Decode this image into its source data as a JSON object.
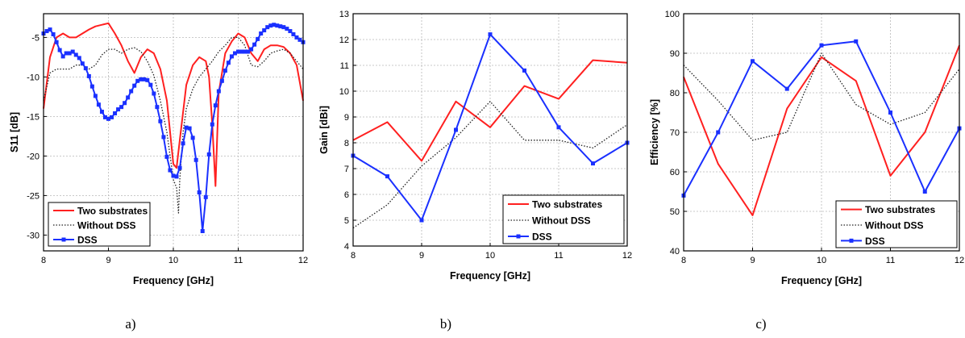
{
  "colors": {
    "two_substrates": "#ff2020",
    "without_dss": "#202020",
    "dss": "#1a30ff"
  },
  "captions": [
    "a)",
    "b)",
    "c)"
  ],
  "chart_data": [
    {
      "type": "line",
      "xlabel": "Frequency [GHz]",
      "ylabel": "S11 [dB]",
      "xlim": [
        8,
        12
      ],
      "ylim": [
        -32,
        -2
      ],
      "xticks": [
        8,
        9,
        10,
        11,
        12
      ],
      "yticks": [
        -30,
        -25,
        -20,
        -15,
        -10,
        -5
      ],
      "grid": true,
      "legend": "bottom-left",
      "series": [
        {
          "name": "Two substrates",
          "style": "solid",
          "marker": false,
          "x": [
            8.0,
            8.1,
            8.2,
            8.3,
            8.4,
            8.5,
            8.6,
            8.7,
            8.8,
            8.9,
            9.0,
            9.1,
            9.2,
            9.3,
            9.4,
            9.5,
            9.6,
            9.7,
            9.8,
            9.9,
            10.0,
            10.05,
            10.1,
            10.2,
            10.3,
            10.4,
            10.5,
            10.55,
            10.6,
            10.65,
            10.7,
            10.8,
            10.9,
            11.0,
            11.1,
            11.2,
            11.3,
            11.4,
            11.5,
            11.6,
            11.7,
            11.8,
            11.9,
            12.0
          ],
          "y": [
            -14,
            -7.5,
            -5,
            -4.5,
            -5,
            -5,
            -4.5,
            -4,
            -3.6,
            -3.4,
            -3.2,
            -4.5,
            -6,
            -8,
            -9.5,
            -7.5,
            -6.5,
            -7,
            -9,
            -13,
            -21,
            -21.5,
            -18,
            -11,
            -8.5,
            -7.5,
            -8,
            -10,
            -16,
            -23.8,
            -12,
            -7,
            -5.5,
            -4.5,
            -5,
            -7,
            -8,
            -6.5,
            -6,
            -6,
            -6.2,
            -7,
            -8.5,
            -13
          ]
        },
        {
          "name": "Without DSS",
          "style": "dotted",
          "marker": false,
          "x": [
            8.0,
            8.1,
            8.2,
            8.3,
            8.4,
            8.5,
            8.6,
            8.7,
            8.8,
            8.9,
            9.0,
            9.1,
            9.2,
            9.3,
            9.4,
            9.5,
            9.6,
            9.7,
            9.8,
            9.9,
            10.0,
            10.05,
            10.08,
            10.1,
            10.15,
            10.2,
            10.3,
            10.4,
            10.5,
            10.6,
            10.7,
            10.8,
            10.9,
            11.0,
            11.1,
            11.2,
            11.3,
            11.4,
            11.5,
            11.6,
            11.7,
            11.8,
            11.9,
            12.0
          ],
          "y": [
            -13,
            -9.5,
            -9,
            -9,
            -9,
            -8.5,
            -8.5,
            -9,
            -8.5,
            -7.2,
            -6.5,
            -6.5,
            -7,
            -6.5,
            -6.3,
            -6.8,
            -8,
            -9.8,
            -13,
            -17,
            -23,
            -24,
            -27.2,
            -23,
            -17,
            -14,
            -11.5,
            -10,
            -9,
            -8,
            -6.8,
            -6,
            -5,
            -5,
            -6,
            -8.5,
            -8.7,
            -8,
            -7,
            -6.7,
            -6.5,
            -7,
            -8,
            -9
          ]
        },
        {
          "name": "DSS",
          "style": "solid",
          "marker": true,
          "x": [
            8.0,
            8.05,
            8.1,
            8.15,
            8.2,
            8.25,
            8.3,
            8.35,
            8.4,
            8.45,
            8.5,
            8.55,
            8.6,
            8.65,
            8.7,
            8.75,
            8.8,
            8.85,
            8.9,
            8.95,
            9.0,
            9.05,
            9.1,
            9.15,
            9.2,
            9.25,
            9.3,
            9.35,
            9.4,
            9.45,
            9.5,
            9.55,
            9.6,
            9.65,
            9.7,
            9.75,
            9.8,
            9.85,
            9.9,
            9.95,
            10.0,
            10.05,
            10.1,
            10.15,
            10.2,
            10.25,
            10.3,
            10.35,
            10.4,
            10.45,
            10.5,
            10.55,
            10.6,
            10.65,
            10.7,
            10.75,
            10.8,
            10.85,
            10.9,
            10.95,
            11.0,
            11.05,
            11.1,
            11.15,
            11.2,
            11.25,
            11.3,
            11.35,
            11.4,
            11.45,
            11.5,
            11.55,
            11.6,
            11.65,
            11.7,
            11.75,
            11.8,
            11.85,
            11.9,
            11.95,
            12.0
          ],
          "y": [
            -4.5,
            -4.2,
            -4,
            -4.6,
            -5.6,
            -6.6,
            -7.4,
            -7,
            -7,
            -6.8,
            -7.2,
            -7.6,
            -8.3,
            -8.9,
            -9.9,
            -11.2,
            -12.4,
            -13.5,
            -14.4,
            -15.1,
            -15.3,
            -15.1,
            -14.6,
            -14.1,
            -13.8,
            -13.3,
            -12.6,
            -11.8,
            -11.1,
            -10.5,
            -10.3,
            -10.3,
            -10.4,
            -11,
            -12.1,
            -13.8,
            -15.6,
            -17.6,
            -20.1,
            -21.8,
            -22.5,
            -22.6,
            -21.5,
            -18.4,
            -16.4,
            -16.5,
            -17.7,
            -20.5,
            -24.6,
            -29.5,
            -25.2,
            -19.8,
            -16,
            -13.6,
            -11.8,
            -10.5,
            -9.2,
            -8.2,
            -7.4,
            -7,
            -6.8,
            -6.8,
            -6.8,
            -6.8,
            -6.5,
            -5.9,
            -5.2,
            -4.5,
            -4.1,
            -3.7,
            -3.5,
            -3.4,
            -3.5,
            -3.6,
            -3.7,
            -3.9,
            -4.2,
            -4.6,
            -5,
            -5.3,
            -5.6
          ]
        }
      ]
    },
    {
      "type": "line",
      "xlabel": "Frequency [GHz]",
      "ylabel": "Gain [dBi]",
      "xlim": [
        8,
        12
      ],
      "ylim": [
        4,
        13
      ],
      "xticks": [
        8,
        9,
        10,
        11,
        12
      ],
      "yticks": [
        4,
        5,
        6,
        7,
        8,
        9,
        10,
        11,
        12,
        13
      ],
      "grid": true,
      "legend": "bottom-right",
      "series": [
        {
          "name": "Two substrates",
          "style": "solid",
          "marker": false,
          "x": [
            8,
            8.5,
            9,
            9.5,
            10,
            10.5,
            11,
            11.5,
            12
          ],
          "y": [
            8.1,
            8.8,
            7.3,
            9.6,
            8.6,
            10.2,
            9.7,
            11.2,
            11.1
          ]
        },
        {
          "name": "Without DSS",
          "style": "dotted",
          "marker": false,
          "x": [
            8,
            8.5,
            9,
            9.5,
            10,
            10.5,
            11,
            11.5,
            12
          ],
          "y": [
            4.7,
            5.6,
            7.1,
            8.2,
            9.6,
            8.1,
            8.1,
            7.8,
            8.7
          ]
        },
        {
          "name": "DSS",
          "style": "solid",
          "marker": true,
          "x": [
            8,
            8.5,
            9,
            9.5,
            10,
            10.5,
            11,
            11.5,
            12
          ],
          "y": [
            7.5,
            6.7,
            5.0,
            8.5,
            12.2,
            10.8,
            8.6,
            7.2,
            8.0
          ]
        }
      ]
    },
    {
      "type": "line",
      "xlabel": "Frequency [GHz]",
      "ylabel": "Efficiency [%]",
      "xlim": [
        8,
        12
      ],
      "ylim": [
        40,
        100
      ],
      "xticks": [
        8,
        9,
        10,
        11,
        12
      ],
      "yticks": [
        40,
        50,
        60,
        70,
        80,
        90,
        100
      ],
      "grid": true,
      "legend": "bottom-right",
      "series": [
        {
          "name": "Two substrates",
          "style": "solid",
          "marker": false,
          "x": [
            8,
            8.5,
            9,
            9.5,
            10,
            10.5,
            11,
            11.5,
            12
          ],
          "y": [
            84,
            62,
            49,
            76,
            89,
            83,
            59,
            70,
            92
          ]
        },
        {
          "name": "Without DSS",
          "style": "dotted",
          "marker": false,
          "x": [
            8,
            8.5,
            9,
            9.5,
            10,
            10.5,
            11,
            11.5,
            12
          ],
          "y": [
            87,
            78,
            68,
            70,
            90,
            77,
            72,
            75,
            86
          ]
        },
        {
          "name": "DSS",
          "style": "solid",
          "marker": true,
          "x": [
            8,
            8.5,
            9,
            9.5,
            10,
            10.5,
            11,
            11.5,
            12
          ],
          "y": [
            54,
            70,
            88,
            81,
            92,
            93,
            75,
            55,
            71
          ]
        }
      ]
    }
  ]
}
